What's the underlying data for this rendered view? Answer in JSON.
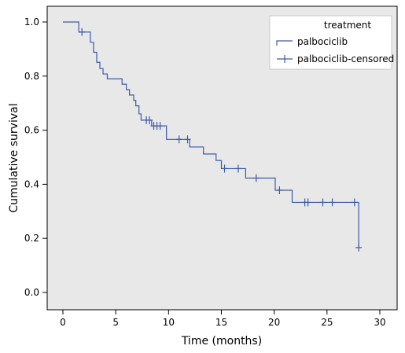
{
  "chart_data": {
    "type": "line",
    "subtype": "kaplan-meier-survival",
    "xlabel": "Time (months)",
    "ylabel": "Cumulative survival",
    "xlim": [
      0,
      30
    ],
    "ylim": [
      0,
      1.0
    ],
    "xticks": [
      0,
      5,
      10,
      15,
      20,
      25,
      30
    ],
    "yticks": [
      0.0,
      0.2,
      0.4,
      0.6,
      0.8,
      1.0
    ],
    "xtick_labels": [
      "0",
      "5",
      "10",
      "15",
      "20",
      "25",
      "30"
    ],
    "ytick_labels": [
      "0.0",
      "0.2",
      "0.4",
      "0.6",
      "0.8",
      "1.0"
    ],
    "grid": false,
    "background": "#e8e8e8",
    "line_color": "#3c5aa6",
    "legend": {
      "title": "treatment",
      "position": "top-right",
      "entries": [
        {
          "name": "palbociclib",
          "marker": "step"
        },
        {
          "name": "palbociclib-censored",
          "marker": "plus"
        }
      ]
    },
    "series": [
      {
        "name": "palbociclib",
        "steps": [
          {
            "x": 0.0,
            "y": 1.0
          },
          {
            "x": 1.5,
            "y": 0.963
          },
          {
            "x": 2.6,
            "y": 0.925
          },
          {
            "x": 2.9,
            "y": 0.888
          },
          {
            "x": 3.2,
            "y": 0.851
          },
          {
            "x": 3.5,
            "y": 0.828
          },
          {
            "x": 3.8,
            "y": 0.808
          },
          {
            "x": 4.2,
            "y": 0.79
          },
          {
            "x": 5.6,
            "y": 0.77
          },
          {
            "x": 6.0,
            "y": 0.75
          },
          {
            "x": 6.3,
            "y": 0.73
          },
          {
            "x": 6.7,
            "y": 0.71
          },
          {
            "x": 6.9,
            "y": 0.69
          },
          {
            "x": 7.2,
            "y": 0.66
          },
          {
            "x": 7.4,
            "y": 0.637
          },
          {
            "x": 8.4,
            "y": 0.616
          },
          {
            "x": 9.8,
            "y": 0.566
          },
          {
            "x": 12.0,
            "y": 0.538
          },
          {
            "x": 13.3,
            "y": 0.512
          },
          {
            "x": 14.5,
            "y": 0.488
          },
          {
            "x": 15.0,
            "y": 0.458
          },
          {
            "x": 17.3,
            "y": 0.423
          },
          {
            "x": 20.1,
            "y": 0.378
          },
          {
            "x": 21.7,
            "y": 0.333
          },
          {
            "x": 28.0,
            "y": 0.166
          }
        ],
        "end_x": 28.0
      },
      {
        "name": "palbociclib-censored",
        "points": [
          {
            "x": 1.8,
            "y": 0.963
          },
          {
            "x": 7.9,
            "y": 0.637
          },
          {
            "x": 8.2,
            "y": 0.637
          },
          {
            "x": 8.6,
            "y": 0.616
          },
          {
            "x": 8.9,
            "y": 0.616
          },
          {
            "x": 9.2,
            "y": 0.616
          },
          {
            "x": 11.0,
            "y": 0.566
          },
          {
            "x": 11.8,
            "y": 0.566
          },
          {
            "x": 15.3,
            "y": 0.458
          },
          {
            "x": 16.6,
            "y": 0.458
          },
          {
            "x": 18.3,
            "y": 0.423
          },
          {
            "x": 20.5,
            "y": 0.378
          },
          {
            "x": 22.9,
            "y": 0.333
          },
          {
            "x": 23.2,
            "y": 0.333
          },
          {
            "x": 24.6,
            "y": 0.333
          },
          {
            "x": 25.5,
            "y": 0.333
          },
          {
            "x": 27.6,
            "y": 0.333
          },
          {
            "x": 28.0,
            "y": 0.166
          }
        ]
      }
    ]
  }
}
